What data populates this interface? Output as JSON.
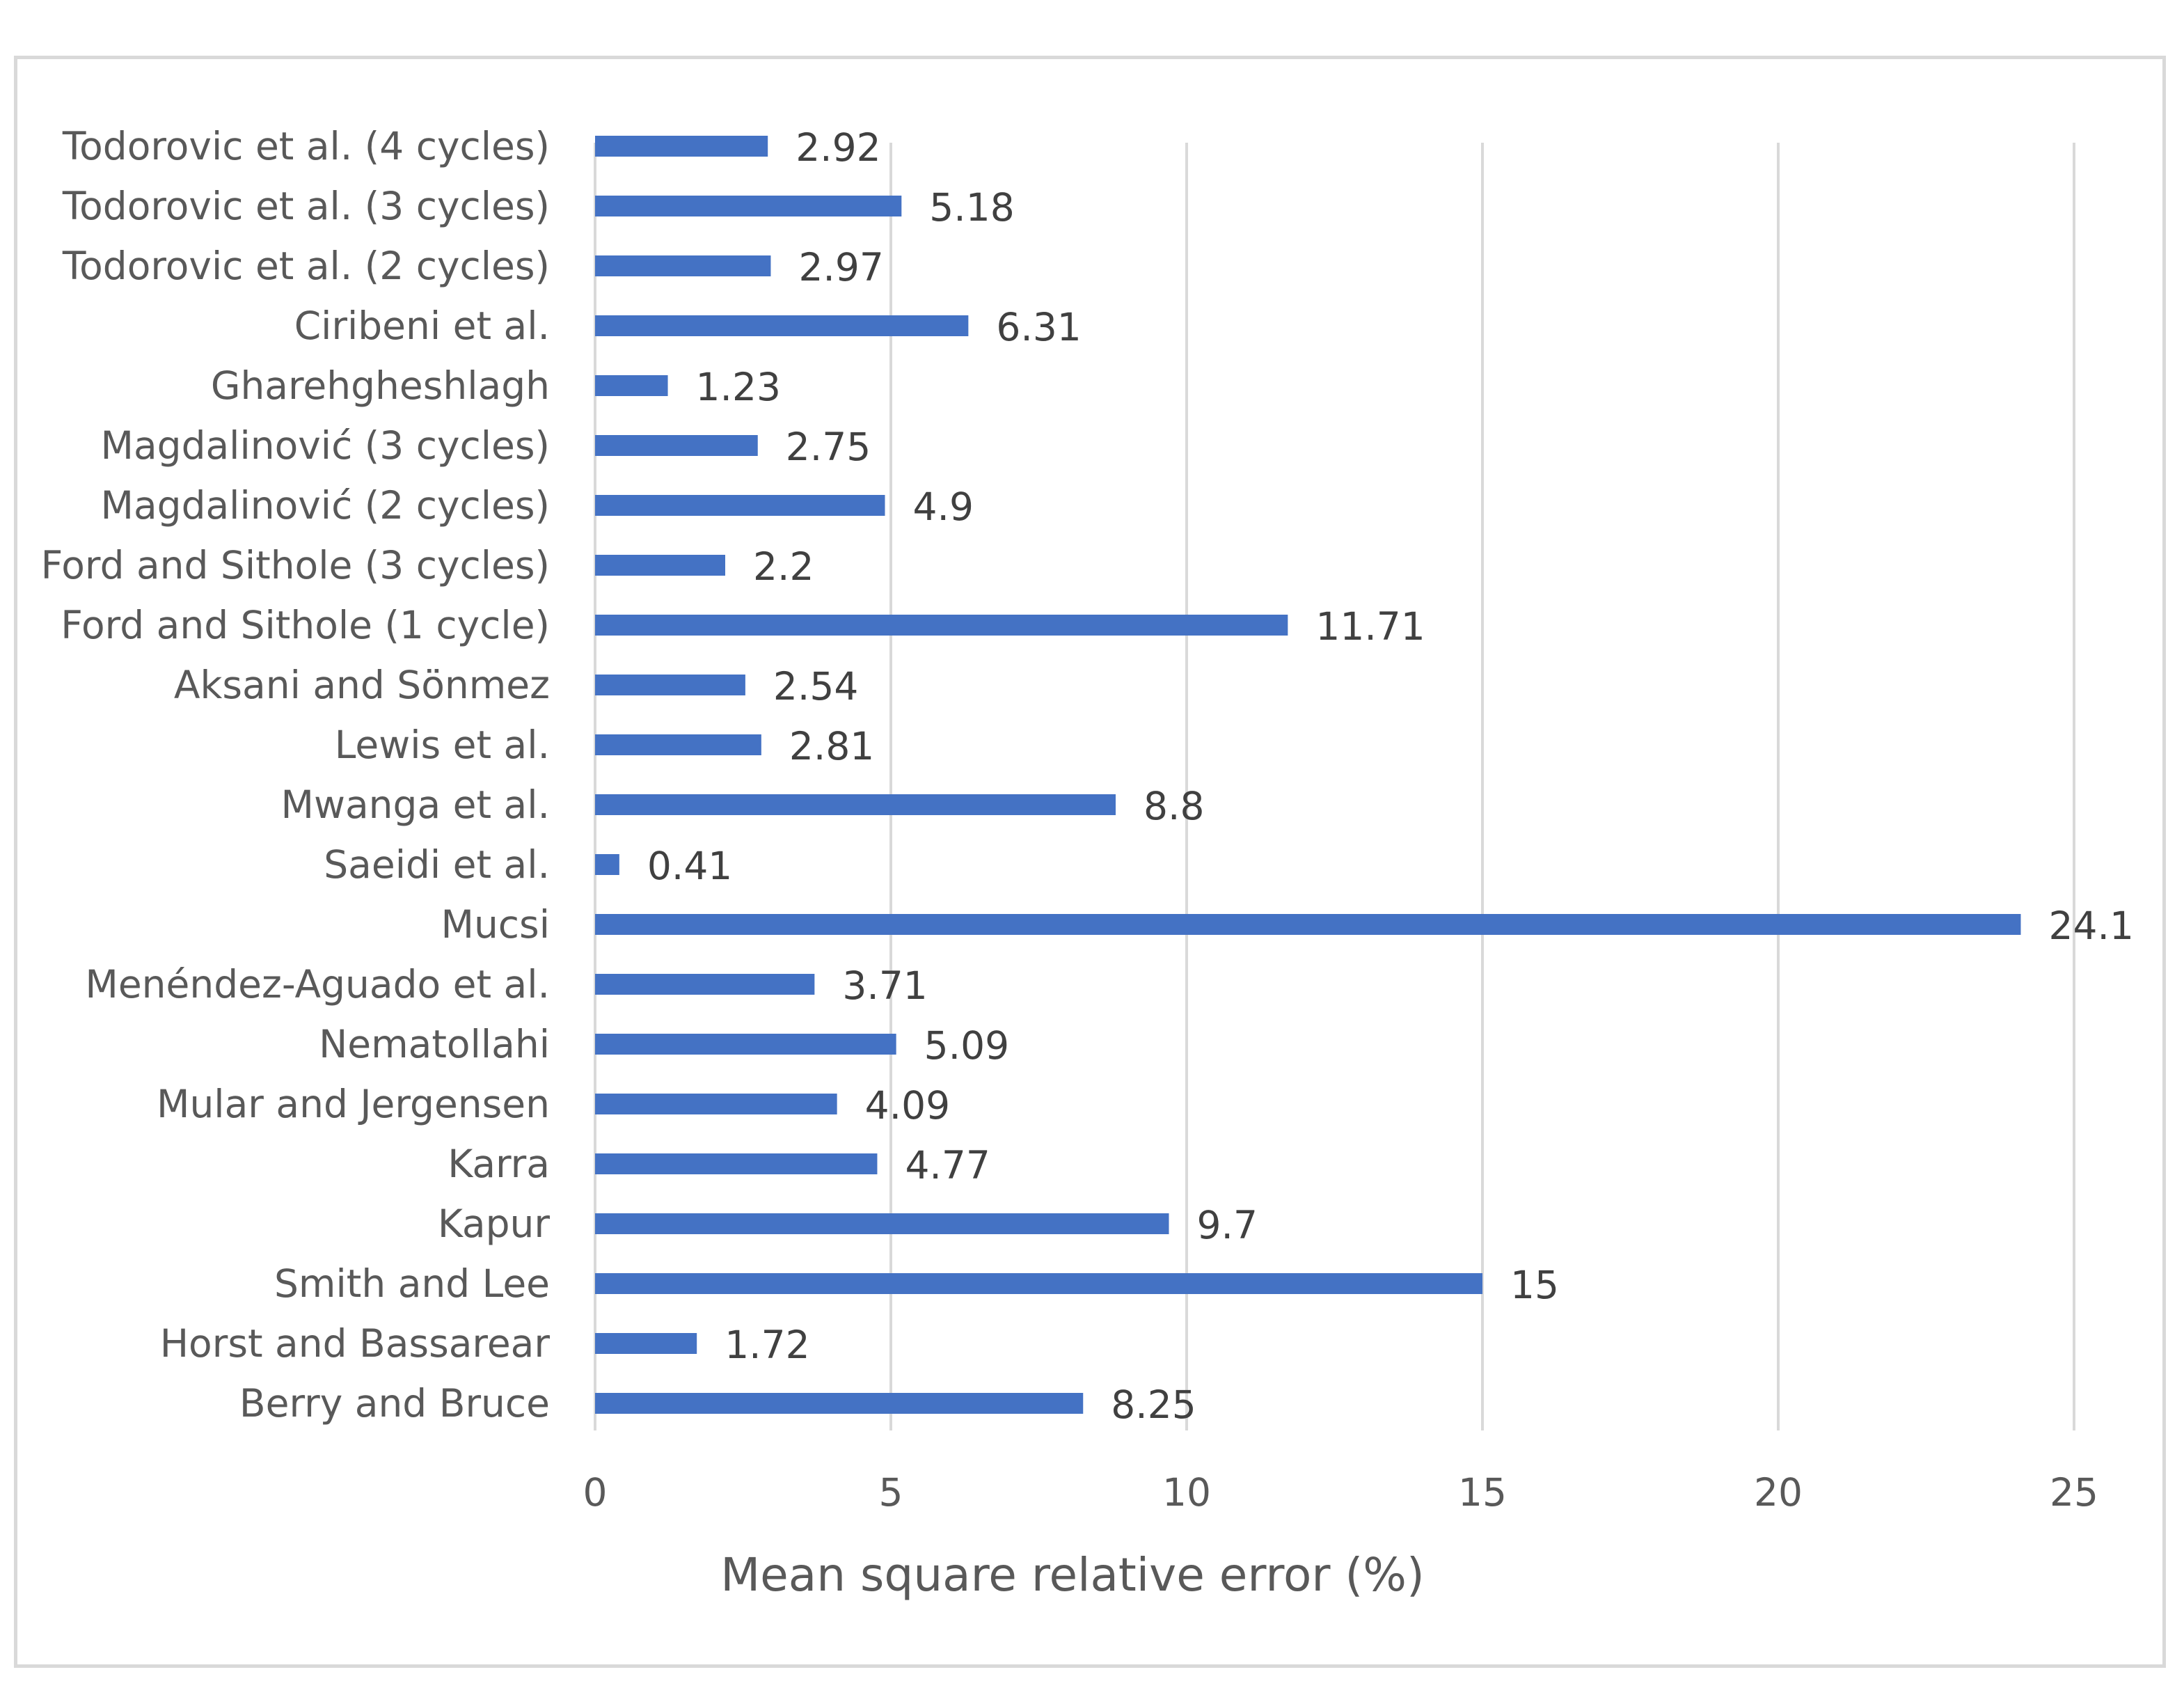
{
  "chart_data": {
    "type": "bar",
    "orientation": "horizontal",
    "title": "",
    "xlabel": "Mean square relative error (%)",
    "ylabel": "",
    "xlim": [
      0,
      25
    ],
    "x_ticks": [
      0,
      5,
      10,
      15,
      20,
      25
    ],
    "grid": true,
    "legend": "none",
    "colors": {
      "bar": "#4472c4",
      "grid": "#d9d9d9",
      "text": "#595959"
    },
    "categories": [
      "Todorovic et al. (4 cycles)",
      "Todorovic et al. (3 cycles)",
      "Todorovic et al. (2 cycles)",
      "Ciribeni et al.",
      "Gharehgheshlagh",
      "Magdalinović (3 cycles)",
      "Magdalinović (2 cycles)",
      "Ford and Sithole (3 cycles)",
      "Ford and Sithole (1 cycle)",
      "Aksani and Sönmez",
      "Lewis et al.",
      "Mwanga et al.",
      "Saeidi et al.",
      "Mucsi",
      "Menéndez-Aguado et al.",
      "Nematollahi",
      "Mular and Jergensen",
      "Karra",
      "Kapur",
      "Smith and Lee",
      "Horst and Bassarear",
      "Berry and Bruce"
    ],
    "values": [
      2.92,
      5.18,
      2.97,
      6.31,
      1.23,
      2.75,
      4.9,
      2.2,
      11.71,
      2.54,
      2.81,
      8.8,
      0.41,
      24.1,
      3.71,
      5.09,
      4.09,
      4.77,
      9.7,
      15,
      1.72,
      8.25
    ],
    "value_labels": [
      "2.92",
      "5.18",
      "2.97",
      "6.31",
      "1.23",
      "2.75",
      "4.9",
      "2.2",
      "11.71",
      "2.54",
      "2.81",
      "8.8",
      "0.41",
      "24.1",
      "3.71",
      "5.09",
      "4.09",
      "4.77",
      "9.7",
      "15",
      "1.72",
      "8.25"
    ]
  }
}
